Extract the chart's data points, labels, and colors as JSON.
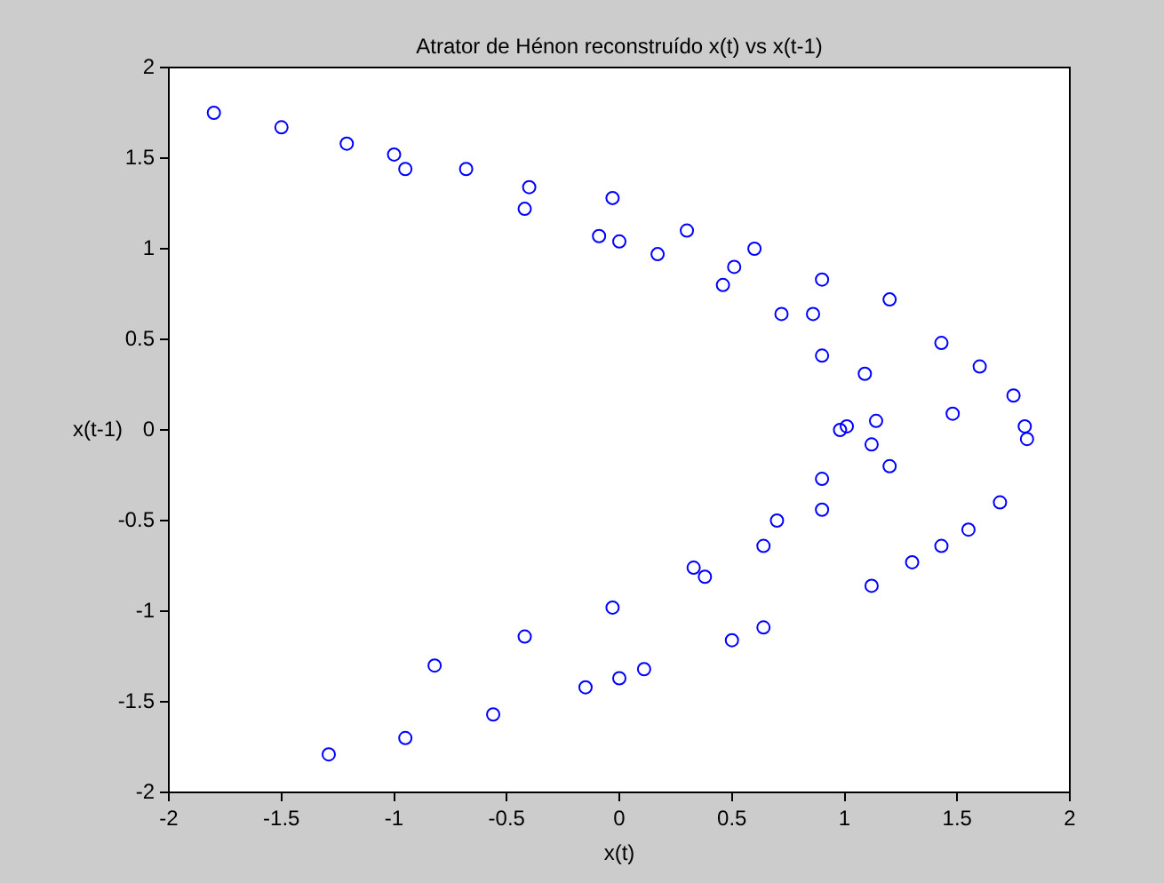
{
  "chart_data": {
    "type": "scatter",
    "title": "Atrator de Hénon reconstruído x(t) vs x(t-1)",
    "xlabel": "x(t)",
    "ylabel": "x(t-1)",
    "marker": "circle",
    "grid": false,
    "legend": false,
    "series": [
      {
        "color": "#0000ff",
        "x": [
          -1.8,
          -1.21,
          -0.68,
          -0.03,
          0.9,
          1.43,
          1.75,
          1.81,
          1.8,
          1.69,
          1.43,
          1.12,
          0.64,
          0.11,
          -0.15,
          -0.56,
          -0.95,
          -1.29,
          -0.82,
          -0.42,
          -0.03,
          0.33,
          0.7,
          0.9,
          1.01,
          1.12,
          0.9,
          0.64,
          0.38,
          0.98,
          0.9,
          0.72,
          0.46,
          0.17,
          -0.09,
          1.14,
          1.09,
          0.86,
          0.51,
          -0.95,
          -0.42,
          0.0,
          1.48,
          -1.5,
          -1.0,
          -0.4,
          0.3,
          0.6,
          1.2,
          1.6,
          1.3,
          1.55,
          0.0,
          0.5,
          1.2
        ],
        "values": [
          1.75,
          1.58,
          1.44,
          1.28,
          0.83,
          0.48,
          0.19,
          -0.05,
          0.02,
          -0.4,
          -0.64,
          -0.86,
          -1.09,
          -1.32,
          -1.42,
          -1.57,
          -1.7,
          -1.79,
          -1.3,
          -1.14,
          -0.98,
          -0.76,
          -0.5,
          -0.27,
          0.02,
          -0.08,
          -0.44,
          -0.64,
          -0.81,
          0.0,
          0.41,
          0.64,
          0.8,
          0.97,
          1.07,
          0.05,
          0.31,
          0.64,
          0.9,
          1.44,
          1.22,
          1.04,
          0.09,
          1.67,
          1.52,
          1.34,
          1.1,
          1.0,
          0.72,
          0.35,
          -0.73,
          -0.55,
          -1.37,
          -1.16,
          -0.2
        ]
      }
    ],
    "xlim": [
      -2,
      2
    ],
    "xticks": [
      -2,
      -1.5,
      -1,
      -0.5,
      0,
      0.5,
      1,
      1.5,
      2
    ],
    "ylim": [
      -2,
      2
    ],
    "yticks": [
      -2,
      -1.5,
      -1,
      -0.5,
      0,
      0.5,
      1,
      1.5,
      2
    ]
  }
}
